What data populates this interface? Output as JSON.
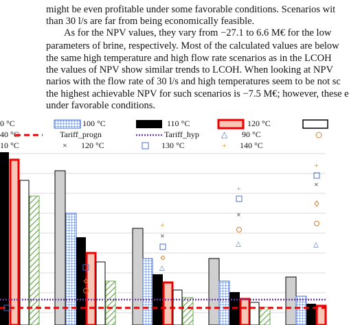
{
  "paragraphs": {
    "lines": [
      "might be even profitable under some favorable conditions. Scenarios wit",
      "than 30 l/s are far from being economically feasible.",
      "As for the NPV values, they vary from −27.1 to 6.6 M€ for the low",
      "parameters of brine, respectively. Most of the calculated values are below",
      "the same high temperature and high flow rate scenarios as in the LCOH",
      "the values of NPV show similar trends to LCOH. When looking at NPV",
      "narios with the flow rate of 30 l/s and high temperatures seem to be not sc",
      "the highest achievable NPV for such scenarios is −7.5 M€; however, these e",
      "under favorable conditions."
    ]
  },
  "figure": {
    "legend": [
      "0 °C",
      "100 °C",
      "110 °C",
      "120 °C",
      "40 °C",
      "Tariff_progn",
      "Tariff_hyp",
      "90 °C",
      "10 °C",
      "120 °C",
      "130 °C",
      "140 °C"
    ]
  }
}
